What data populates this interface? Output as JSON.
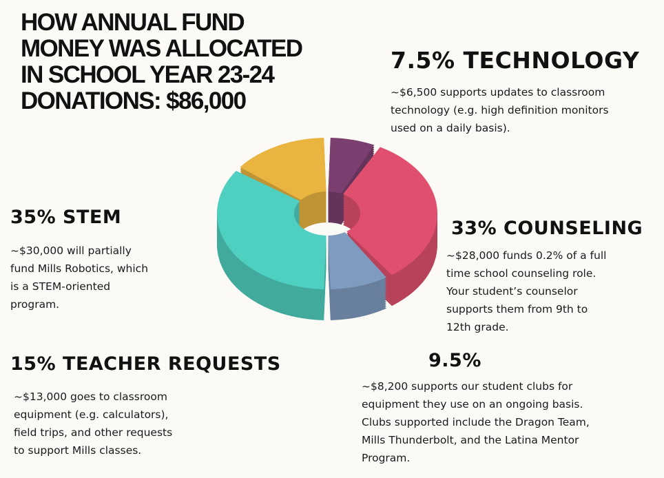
{
  "title": "HOW ANNUAL FUND\nMONEY WAS ALLOCATED\nIN SCHOOL YEAR 23-24\nDONATIONS: $86,000",
  "sections": {
    "technology": {
      "heading": "7.5% TECHNOLOGY",
      "body": "~$6,500 supports updates to classroom\ntechnology (e.g. high definition monitors\nused on a daily basis)."
    },
    "stem": {
      "heading": "35% STEM",
      "body": "~$30,000 will partially\nfund Mills Robotics, which\nis a STEM-oriented\nprogram."
    },
    "counseling": {
      "heading": "33% COUNSELING",
      "body": "~$28,000 funds 0.2% of a full\ntime school counseling role.\nYour student’s counselor\nsupports them from 9th to\n12th grade."
    },
    "teacher": {
      "heading": "15% TEACHER REQUESTS",
      "body": "~$13,000 goes to classroom\nequipment (e.g. calculators),\nfield trips, and other requests\nto support Mills classes."
    },
    "clubs": {
      "heading": "9.5%",
      "body": "~$8,200 supports our student clubs for\nequipment they use on an ongoing basis.\nClubs supported include the Dragon Team,\nMills Thunderbolt, and the Latina Mentor\nProgram."
    }
  },
  "chart_data": {
    "type": "pie",
    "style": "3d donut",
    "title": "HOW ANNUAL FUND MONEY WAS ALLOCATED IN SCHOOL YEAR 23-24",
    "total": 86000,
    "categories": [
      "TECHNOLOGY",
      "COUNSELING",
      "9.5%",
      "STEM",
      "TEACHER REQUESTS"
    ],
    "values": [
      7.5,
      33,
      9.5,
      35,
      15
    ],
    "amounts": [
      6500,
      28000,
      8200,
      30000,
      13000
    ],
    "colors": [
      "#7a3f6e",
      "#e0506e",
      "#7f9cc0",
      "#4fcfc0",
      "#e9b440"
    ]
  }
}
